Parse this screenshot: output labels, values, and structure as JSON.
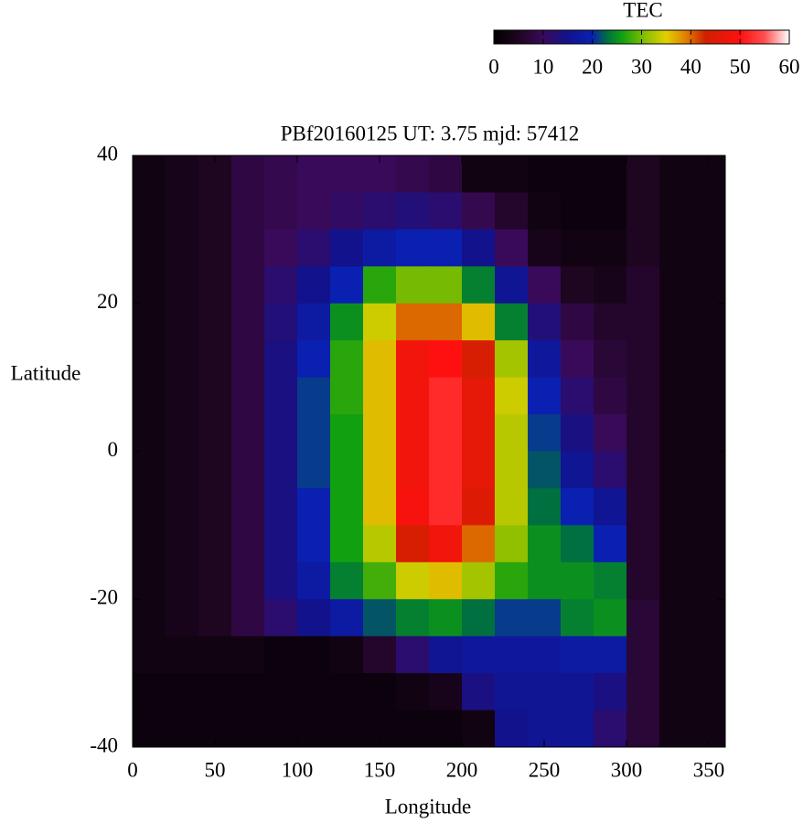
{
  "chart_data": {
    "type": "heatmap",
    "title": "PBf20160125  UT: 3.75  mjd: 57412",
    "x_label": "Longitude",
    "y_label": "Latitude",
    "xlim": [
      0,
      360
    ],
    "xticks": [
      0,
      50,
      100,
      150,
      200,
      250,
      300,
      350
    ],
    "ylim": [
      -40,
      40
    ],
    "yticks": [
      -40,
      -20,
      0,
      20,
      40
    ],
    "x": [
      10,
      30,
      50,
      70,
      90,
      110,
      130,
      150,
      170,
      190,
      210,
      230,
      250,
      270,
      290,
      310,
      330,
      350
    ],
    "y": [
      37.5,
      32.5,
      27.5,
      22.5,
      17.5,
      12.5,
      7.5,
      2.5,
      -2.5,
      -7.5,
      -12.5,
      -17.5,
      -22.5,
      -27.5,
      -32.5,
      -37.5
    ],
    "values": [
      [
        3,
        4,
        5,
        8,
        9,
        10,
        10,
        10,
        9,
        8,
        3,
        3,
        2,
        2,
        2,
        5,
        3,
        3
      ],
      [
        3,
        4,
        5,
        8,
        9,
        10,
        11,
        12,
        13,
        12,
        9,
        6,
        3,
        2,
        2,
        5,
        3,
        3
      ],
      [
        3,
        4,
        5,
        8,
        10,
        12,
        15,
        18,
        20,
        20,
        15,
        10,
        4,
        3,
        3,
        5,
        3,
        3
      ],
      [
        3,
        4,
        5,
        8,
        12,
        15,
        20,
        27,
        30,
        30,
        24,
        16,
        10,
        5,
        4,
        6,
        3,
        3
      ],
      [
        3,
        4,
        5,
        8,
        13,
        18,
        25,
        34,
        40,
        40,
        36,
        24,
        13,
        8,
        6,
        6,
        3,
        3
      ],
      [
        3,
        4,
        5,
        8,
        14,
        20,
        27,
        36,
        48,
        50,
        44,
        32,
        17,
        10,
        7,
        6,
        3,
        3
      ],
      [
        3,
        4,
        5,
        8,
        14,
        21,
        27,
        36,
        48,
        52,
        46,
        34,
        20,
        12,
        8,
        6,
        3,
        3
      ],
      [
        3,
        4,
        5,
        8,
        14,
        21,
        26,
        36,
        48,
        52,
        46,
        33,
        21,
        14,
        10,
        6,
        3,
        3
      ],
      [
        3,
        4,
        5,
        8,
        14,
        21,
        26,
        36,
        48,
        52,
        46,
        33,
        22,
        16,
        12,
        6,
        3,
        3
      ],
      [
        3,
        4,
        5,
        8,
        14,
        20,
        26,
        36,
        49,
        52,
        45,
        33,
        23,
        20,
        16,
        6,
        3,
        3
      ],
      [
        3,
        4,
        5,
        8,
        14,
        20,
        26,
        33,
        44,
        48,
        40,
        31,
        25,
        23,
        20,
        6,
        3,
        3
      ],
      [
        3,
        4,
        5,
        8,
        14,
        18,
        24,
        28,
        34,
        36,
        32,
        27,
        25,
        25,
        24,
        6,
        3,
        3
      ],
      [
        3,
        4,
        5,
        8,
        12,
        15,
        18,
        22,
        24,
        25,
        23,
        21,
        21,
        24,
        25,
        7,
        3,
        3
      ],
      [
        3,
        3,
        3,
        3,
        2,
        2,
        3,
        6,
        12,
        16,
        17,
        17,
        17,
        18,
        18,
        7,
        3,
        3
      ],
      [
        2,
        2,
        2,
        2,
        2,
        2,
        2,
        2,
        3,
        4,
        14,
        16,
        16,
        16,
        14,
        7,
        3,
        3
      ],
      [
        2,
        2,
        2,
        2,
        2,
        2,
        2,
        2,
        2,
        2,
        3,
        15,
        16,
        16,
        12,
        7,
        3,
        3
      ]
    ],
    "colorbar": {
      "label": "TEC",
      "lim": [
        0,
        60
      ],
      "ticks": [
        0,
        10,
        20,
        30,
        40,
        50,
        60
      ],
      "colormap": [
        [
          0,
          "#000000"
        ],
        [
          5,
          "#1e0520"
        ],
        [
          10,
          "#3a0a5a"
        ],
        [
          15,
          "#12128c"
        ],
        [
          20,
          "#0a20b0"
        ],
        [
          23,
          "#007040"
        ],
        [
          26,
          "#10a010"
        ],
        [
          31,
          "#90c000"
        ],
        [
          35,
          "#e0d000"
        ],
        [
          39,
          "#e08000"
        ],
        [
          43,
          "#d02000"
        ],
        [
          50,
          "#ff1010"
        ],
        [
          55,
          "#ff5050"
        ],
        [
          60,
          "#ffffff"
        ]
      ]
    }
  }
}
